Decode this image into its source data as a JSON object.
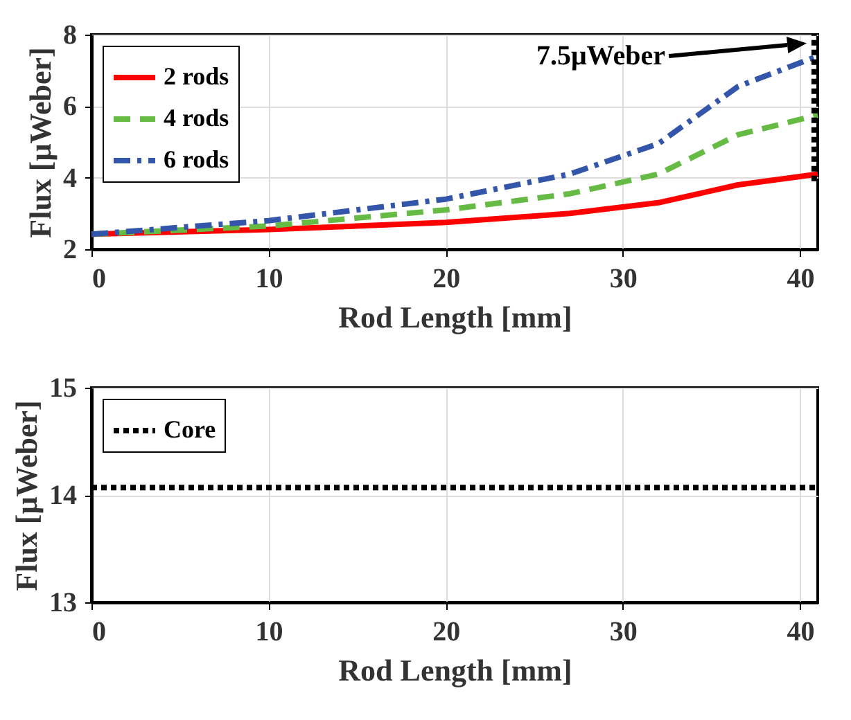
{
  "chart_data": [
    {
      "type": "line",
      "xlabel": "Rod Length [mm]",
      "ylabel": "Flux [μWeber]",
      "xlim": [
        0,
        41
      ],
      "ylim": [
        2,
        8
      ],
      "xticks": [
        0,
        10,
        20,
        30,
        40
      ],
      "yticks": [
        2,
        4,
        6,
        8
      ],
      "grid": true,
      "legend": "top left",
      "x": [
        0,
        10,
        20,
        27,
        32,
        36.5,
        41
      ],
      "series": [
        {
          "name": "2 rods",
          "color": "#ff0000",
          "line_style": "solid",
          "values": [
            2.42,
            2.55,
            2.75,
            3.0,
            3.3,
            3.8,
            4.1
          ]
        },
        {
          "name": "4 rods",
          "color": "#66bb44",
          "line_style": "dashed",
          "values": [
            2.42,
            2.65,
            3.1,
            3.55,
            4.1,
            5.2,
            5.75
          ]
        },
        {
          "name": "6 rods",
          "color": "#3355aa",
          "line_style": "dashdot",
          "values": [
            2.42,
            2.8,
            3.4,
            4.1,
            4.95,
            6.55,
            7.4
          ]
        },
        {
          "color": "#000000",
          "line_style": "dotted",
          "x": [
            40.8,
            40.8
          ],
          "values": [
            3.9,
            8
          ]
        }
      ],
      "annotations": [
        "7.5μWeber"
      ]
    },
    {
      "type": "line",
      "xlabel": "Rod Length [mm]",
      "ylabel": "Flux [μWeber]",
      "xlim": [
        0,
        41
      ],
      "ylim": [
        13,
        15
      ],
      "xticks": [
        0,
        10,
        20,
        30,
        40
      ],
      "yticks": [
        13,
        14,
        15
      ],
      "grid": true,
      "legend": "top left",
      "x": [
        0,
        41
      ],
      "series": [
        {
          "name": "Core",
          "color": "#000000",
          "line_style": "dotted",
          "values": [
            14.07,
            14.07
          ]
        }
      ]
    }
  ]
}
